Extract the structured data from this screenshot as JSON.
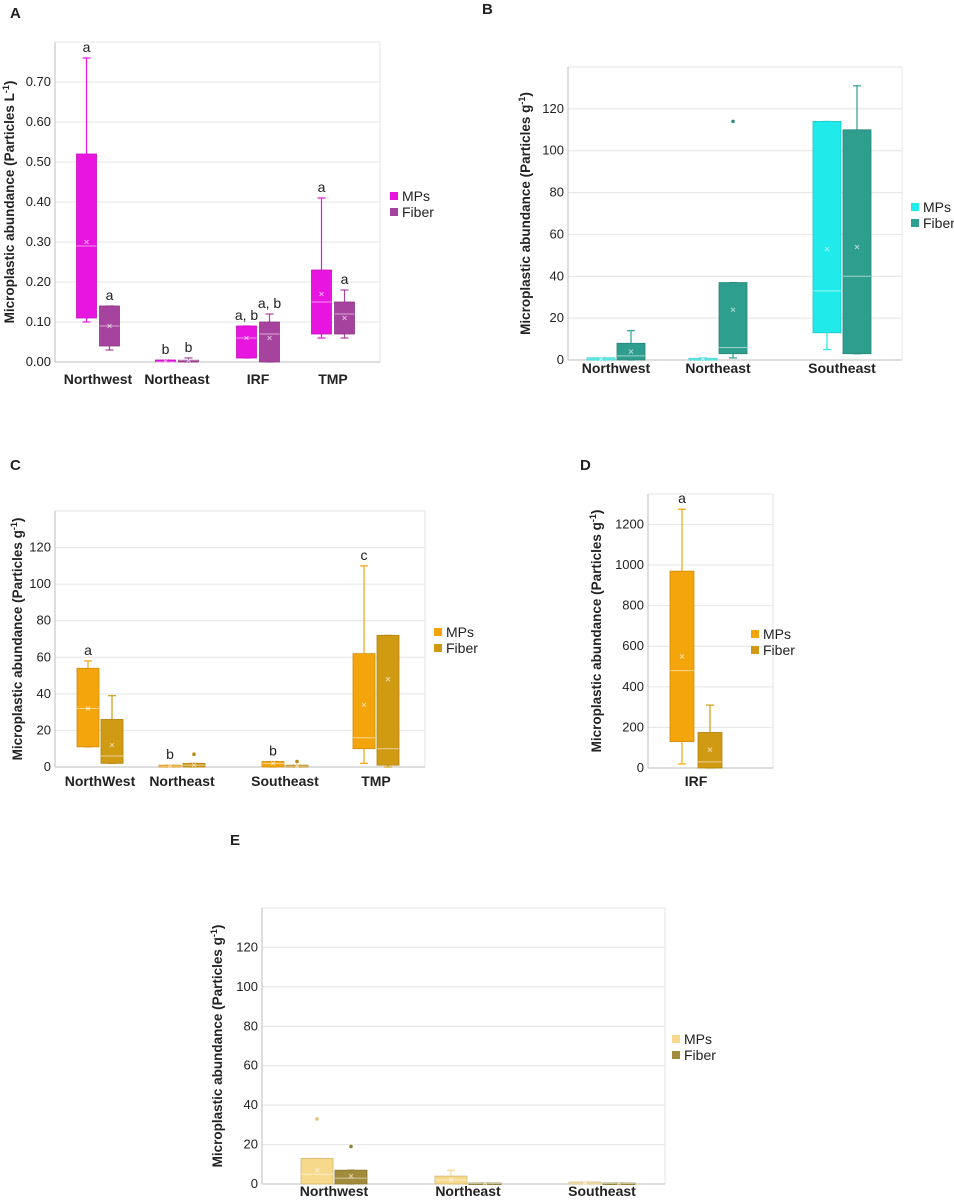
{
  "chart_data": [
    {
      "panel": "A",
      "type": "box",
      "ylabel": "Microplastic abundance (Particles L",
      "ylabel_sup": "-1",
      "ylabel_end": ")",
      "ylim": [
        0,
        0.8
      ],
      "yticks": [
        "0.00",
        "0.10",
        "0.20",
        "0.30",
        "0.40",
        "0.50",
        "0.60",
        "0.70"
      ],
      "ytick_values": [
        0,
        0.1,
        0.2,
        0.3,
        0.4,
        0.5,
        0.6,
        0.7
      ],
      "categories": [
        "Northwest",
        "Northeast",
        "IRF",
        "TMP"
      ],
      "legend": [
        "MPs",
        "Fiber"
      ],
      "colors": [
        "#e814e0",
        "#a6439e"
      ],
      "series": [
        {
          "name": "MPs",
          "boxes": [
            {
              "min": 0.1,
              "q1": 0.11,
              "median": 0.29,
              "q3": 0.52,
              "max": 0.76,
              "mean": 0.3,
              "label": "a"
            },
            {
              "min": 0.0,
              "q1": 0.0,
              "median": 0.0,
              "q3": 0.005,
              "max": 0.005,
              "mean": 0.002,
              "label": "b"
            },
            {
              "min": 0.01,
              "q1": 0.01,
              "median": 0.06,
              "q3": 0.09,
              "max": 0.09,
              "mean": 0.06,
              "label": "a, b"
            },
            {
              "min": 0.06,
              "q1": 0.07,
              "median": 0.15,
              "q3": 0.23,
              "max": 0.41,
              "mean": 0.17,
              "label": "a"
            }
          ]
        },
        {
          "name": "Fiber",
          "boxes": [
            {
              "min": 0.03,
              "q1": 0.04,
              "median": 0.09,
              "q3": 0.14,
              "max": 0.14,
              "mean": 0.09,
              "label": "a"
            },
            {
              "min": 0.0,
              "q1": 0.0,
              "median": 0.005,
              "q3": 0.005,
              "max": 0.01,
              "mean": 0.004,
              "label": "b"
            },
            {
              "min": 0.0,
              "q1": 0.0,
              "median": 0.07,
              "q3": 0.1,
              "max": 0.12,
              "mean": 0.06,
              "label": "a, b"
            },
            {
              "min": 0.06,
              "q1": 0.07,
              "median": 0.12,
              "q3": 0.15,
              "max": 0.18,
              "mean": 0.11,
              "label": "a"
            }
          ]
        }
      ]
    },
    {
      "panel": "B",
      "type": "box",
      "ylabel": "Microplastic abundance (Particles g",
      "ylabel_sup": "-1",
      "ylabel_end": ")",
      "ylim": [
        0,
        140
      ],
      "yticks": [
        "0",
        "20",
        "40",
        "60",
        "80",
        "100",
        "120"
      ],
      "ytick_values": [
        0,
        20,
        40,
        60,
        80,
        100,
        120
      ],
      "categories": [
        "Northwest",
        "Northeast",
        "Southeast"
      ],
      "legend": [
        "MPs",
        "Fiber"
      ],
      "colors": [
        "#21eaea",
        "#2e9e8e"
      ],
      "series": [
        {
          "name": "MPs",
          "boxes": [
            {
              "min": 0,
              "q1": 0,
              "median": 0.5,
              "q3": 1,
              "max": 1,
              "mean": 0.5
            },
            {
              "min": 0,
              "q1": 0,
              "median": 0.5,
              "q3": 0.8,
              "max": 1,
              "mean": 0.5
            },
            {
              "min": 5,
              "q1": 13,
              "median": 33,
              "q3": 114,
              "max": 114,
              "mean": 53
            }
          ]
        },
        {
          "name": "Fiber",
          "boxes": [
            {
              "min": 0,
              "q1": 0,
              "median": 2,
              "q3": 8,
              "max": 14,
              "mean": 4
            },
            {
              "min": 1,
              "q1": 3,
              "median": 6,
              "q3": 37,
              "max": 37,
              "mean": 24,
              "outliers": [
                114
              ]
            },
            {
              "min": 3,
              "q1": 3,
              "median": 40,
              "q3": 110,
              "max": 131,
              "mean": 54
            }
          ]
        }
      ]
    },
    {
      "panel": "C",
      "type": "box",
      "ylabel": "Microplastic abundance (Particles g",
      "ylabel_sup": "-1",
      "ylabel_end": ")",
      "ylim": [
        0,
        140
      ],
      "yticks": [
        "0",
        "20",
        "40",
        "60",
        "80",
        "100",
        "120"
      ],
      "ytick_values": [
        0,
        20,
        40,
        60,
        80,
        100,
        120
      ],
      "categories": [
        "NorthWest",
        "Northeast",
        "Southeast",
        "TMP"
      ],
      "legend": [
        "MPs",
        "Fiber"
      ],
      "colors": [
        "#f5a50c",
        "#d09a13"
      ],
      "series": [
        {
          "name": "MPs",
          "boxes": [
            {
              "min": 11,
              "q1": 11,
              "median": 32,
              "q3": 54,
              "max": 58,
              "mean": 32,
              "label": "a"
            },
            {
              "min": 0,
              "q1": 0,
              "median": 0.5,
              "q3": 1,
              "max": 1,
              "mean": 0.5,
              "label": "b"
            },
            {
              "min": 0,
              "q1": 0,
              "median": 2,
              "q3": 3,
              "max": 3,
              "mean": 2,
              "label": "b"
            },
            {
              "min": 2,
              "q1": 10,
              "median": 16,
              "q3": 62,
              "max": 110,
              "mean": 34,
              "label": "c"
            }
          ]
        },
        {
          "name": "Fiber",
          "boxes": [
            {
              "min": 2,
              "q1": 2,
              "median": 6,
              "q3": 26,
              "max": 39,
              "mean": 12
            },
            {
              "min": 0,
              "q1": 0,
              "median": 1,
              "q3": 2,
              "max": 2,
              "mean": 1,
              "outliers": [
                7
              ]
            },
            {
              "min": 0,
              "q1": 0,
              "median": 0.5,
              "q3": 1,
              "max": 1,
              "mean": 0.5,
              "outliers": [
                3
              ]
            },
            {
              "min": 0,
              "q1": 1,
              "median": 10,
              "q3": 72,
              "max": 72,
              "mean": 48
            }
          ]
        }
      ]
    },
    {
      "panel": "D",
      "type": "box",
      "ylabel": "Microplastic abundance (Particles g",
      "ylabel_sup": "-1",
      "ylabel_end": ")",
      "ylim": [
        0,
        1350
      ],
      "yticks": [
        "0",
        "200",
        "400",
        "600",
        "800",
        "1000",
        "1200"
      ],
      "ytick_values": [
        0,
        200,
        400,
        600,
        800,
        1000,
        1200
      ],
      "categories": [
        "IRF"
      ],
      "legend": [
        "MPs",
        "Fiber"
      ],
      "colors": [
        "#f5a50c",
        "#d09a13"
      ],
      "series": [
        {
          "name": "MPs",
          "boxes": [
            {
              "min": 20,
              "q1": 130,
              "median": 480,
              "q3": 970,
              "max": 1275,
              "mean": 550,
              "label": "a"
            }
          ]
        },
        {
          "name": "Fiber",
          "boxes": [
            {
              "min": 0,
              "q1": 0,
              "median": 30,
              "q3": 175,
              "max": 310,
              "mean": 90
            }
          ]
        }
      ]
    },
    {
      "panel": "E",
      "type": "box",
      "ylabel": "Microplastic abundance (Particles g",
      "ylabel_sup": "-1",
      "ylabel_end": ")",
      "ylim": [
        0,
        140
      ],
      "yticks": [
        "0",
        "20",
        "40",
        "60",
        "80",
        "100",
        "120"
      ],
      "ytick_values": [
        0,
        20,
        40,
        60,
        80,
        100,
        120
      ],
      "categories": [
        "Northwest",
        "Northeast",
        "Southeast"
      ],
      "legend": [
        "MPs",
        "Fiber"
      ],
      "colors": [
        "#f6d98a",
        "#a28b3a"
      ],
      "series": [
        {
          "name": "MPs",
          "boxes": [
            {
              "min": 0,
              "q1": 0,
              "median": 5,
              "q3": 13,
              "max": 13,
              "mean": 7,
              "outliers": [
                33
              ]
            },
            {
              "min": 0,
              "q1": 0,
              "median": 2,
              "q3": 4,
              "max": 7,
              "mean": 2
            },
            {
              "min": 0,
              "q1": 0,
              "median": 0.5,
              "q3": 1,
              "max": 1,
              "mean": 0.5
            }
          ]
        },
        {
          "name": "Fiber",
          "boxes": [
            {
              "min": 0,
              "q1": 0,
              "median": 3,
              "q3": 7,
              "max": 7,
              "mean": 4,
              "outliers": [
                19
              ]
            },
            {
              "min": 0,
              "q1": 0,
              "median": 0.3,
              "q3": 0.5,
              "max": 0.5,
              "mean": 0.3
            },
            {
              "min": 0,
              "q1": 0,
              "median": 0.3,
              "q3": 0.5,
              "max": 0.5,
              "mean": 0.3
            }
          ]
        }
      ]
    }
  ]
}
